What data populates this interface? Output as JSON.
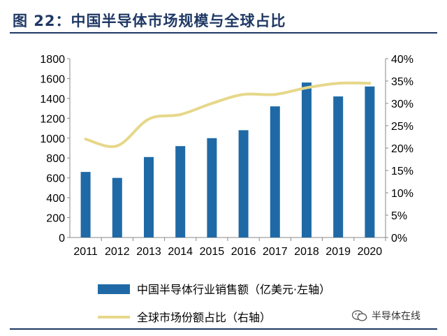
{
  "header": {
    "title": "图 22：中国半导体市场规模与全球占比"
  },
  "watermark": {
    "text": "半导体在线"
  },
  "colors": {
    "bar": "#1f6aa6",
    "line": "#e6d88a",
    "title": "#1f3864"
  },
  "chart_data": {
    "type": "bar",
    "categories": [
      "2011",
      "2012",
      "2013",
      "2014",
      "2015",
      "2016",
      "2017",
      "2018",
      "2019",
      "2020"
    ],
    "series": [
      {
        "name": "中国半导体行业销售额（亿美元·左轴）",
        "type": "bar",
        "axis": "left",
        "values": [
          660,
          600,
          810,
          920,
          1000,
          1080,
          1320,
          1560,
          1420,
          1520
        ]
      },
      {
        "name": "全球市场份额占比（右轴）",
        "type": "line",
        "axis": "right",
        "values": [
          22,
          20.5,
          26.5,
          27.5,
          30,
          32,
          32,
          33.5,
          34.5,
          34.5
        ]
      }
    ],
    "y_left": {
      "min": 0,
      "max": 1800,
      "ticks": [
        "0",
        "200",
        "400",
        "600",
        "800",
        "1000",
        "1200",
        "1400",
        "1600",
        "1800"
      ]
    },
    "y_right": {
      "min": 0,
      "max": 40,
      "ticks": [
        "0%",
        "5%",
        "10%",
        "15%",
        "20%",
        "25%",
        "30%",
        "35%",
        "40%"
      ]
    },
    "grid": false,
    "legend_position": "bottom-left"
  }
}
